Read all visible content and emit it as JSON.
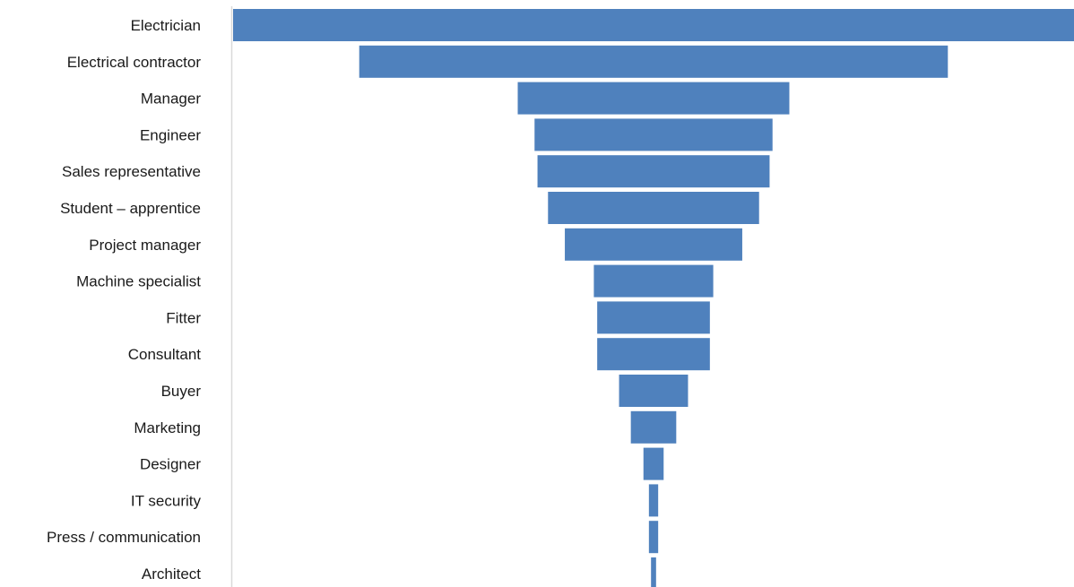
{
  "chart_data": {
    "type": "bar",
    "orientation": "horizontal",
    "style": "funnel",
    "bar_color": "#4f81bd",
    "axis_color": "#d9d9d9",
    "grid": false,
    "legend": "none",
    "title": "",
    "xlabel": "",
    "ylabel": "",
    "categories": [
      "Electrician",
      "Electrical contractor",
      "Manager",
      "Engineer",
      "Sales representative",
      "Student – apprentice",
      "Project manager",
      "Machine specialist",
      "Fitter",
      "Consultant",
      "Buyer",
      "Marketing",
      "Designer",
      "IT security",
      "Press / communication",
      "Architect"
    ],
    "values": [
      100,
      70,
      32.3,
      28.3,
      27.6,
      25.1,
      21.1,
      14.2,
      13.4,
      13.4,
      8.2,
      5.4,
      2.4,
      1.1,
      1.1,
      0.6
    ],
    "xlim": [
      0,
      100
    ]
  }
}
